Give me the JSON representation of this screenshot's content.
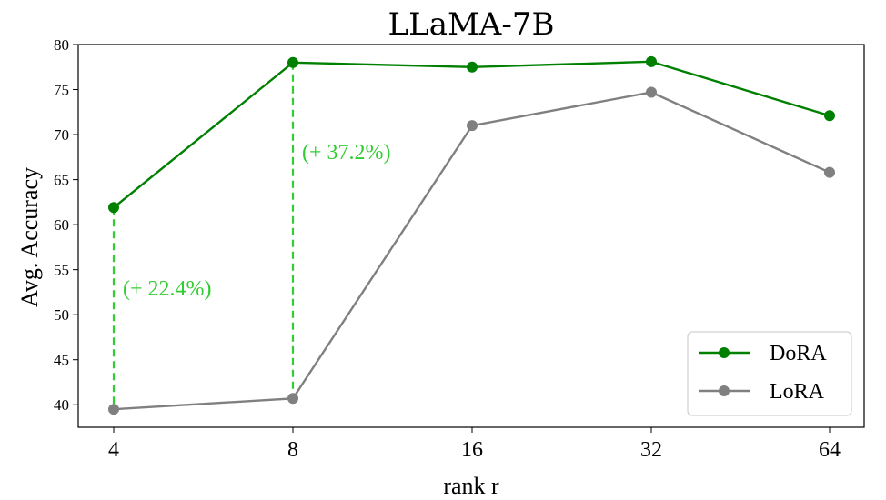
{
  "chart_data": {
    "type": "line",
    "title": "LLaMA-7B",
    "xlabel": "rank r",
    "ylabel": "Avg. Accuracy",
    "categories": [
      "4",
      "8",
      "16",
      "32",
      "64"
    ],
    "ylim": [
      37.5,
      80
    ],
    "yticks": [
      40,
      45,
      50,
      55,
      60,
      65,
      70,
      75,
      80
    ],
    "grid": false,
    "legend_position": "bottom-right",
    "series": [
      {
        "name": "DoRA",
        "color": "#008000",
        "values": [
          61.9,
          78.0,
          77.5,
          78.1,
          72.1
        ]
      },
      {
        "name": "LoRA",
        "color": "#808080",
        "values": [
          39.5,
          40.7,
          71.0,
          74.7,
          65.8
        ]
      }
    ],
    "annotations": [
      {
        "text": "(+ 22.4%)",
        "category_index": 0,
        "color": "#33cc33"
      },
      {
        "text": "(+ 37.2%)",
        "category_index": 1,
        "color": "#33cc33"
      }
    ]
  }
}
